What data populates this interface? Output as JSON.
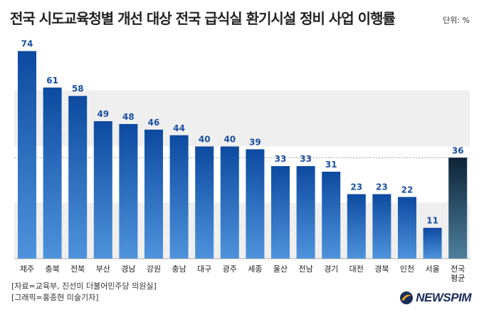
{
  "header": {
    "title": "전국 시도교육청별 개선 대상 전국 급식실 환기시설 정비 사업 이행률",
    "unit": "단위: %"
  },
  "chart_data": {
    "type": "bar",
    "title": "전국 시도교육청별 개선 대상 전국 급식실 환기시설 정비 사업 이행률",
    "xlabel": "",
    "ylabel": "",
    "unit": "단위: %",
    "ylim": [
      0,
      80
    ],
    "categories": [
      "제주",
      "충북",
      "전북",
      "부산",
      "경남",
      "강원",
      "충남",
      "대구",
      "광주",
      "세종",
      "울산",
      "전남",
      "경기",
      "대전",
      "경북",
      "인천",
      "서울",
      "전국\n평균"
    ],
    "values": [
      74,
      61,
      58,
      49,
      48,
      46,
      44,
      40,
      40,
      39,
      33,
      33,
      31,
      23,
      23,
      22,
      11,
      36
    ],
    "average_index": 17,
    "reference_line": 36,
    "colors": {
      "bar_top": "#0d4aa0",
      "bar_bottom": "#4e93dc",
      "avg_top": "#0d2438",
      "avg_bottom": "#4e7f9c",
      "value_label": "#1a4fa0",
      "band": "#efefef"
    },
    "grid": false,
    "legend": "none"
  },
  "footer": {
    "source": "[자료=교육부, 진선미 더불어민주당 의원실]",
    "credit": "[그래픽=홍종현 미술기자]",
    "logo_text": "NEWSPIM"
  }
}
